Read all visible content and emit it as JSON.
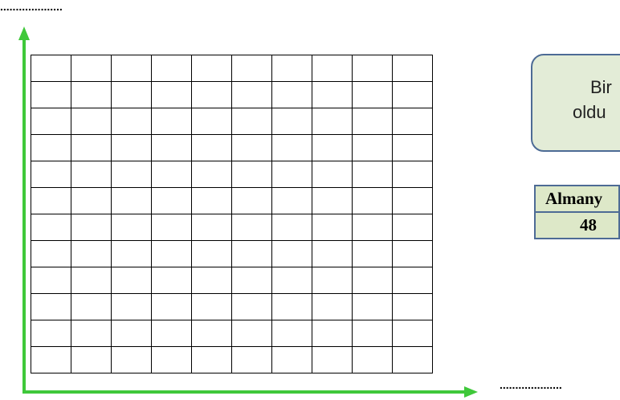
{
  "page": {
    "dotted_line_top": "....................",
    "dotted_line_bottom": "....................",
    "axes_color": "#3fc83a"
  },
  "grid": {
    "rows": 12,
    "cols": 10
  },
  "callout": {
    "line1": "Bir",
    "line2": "oldu",
    "background": "#e3ecd7",
    "border_color": "#4d6b95"
  },
  "table": {
    "header": "Almany",
    "value": "48"
  }
}
